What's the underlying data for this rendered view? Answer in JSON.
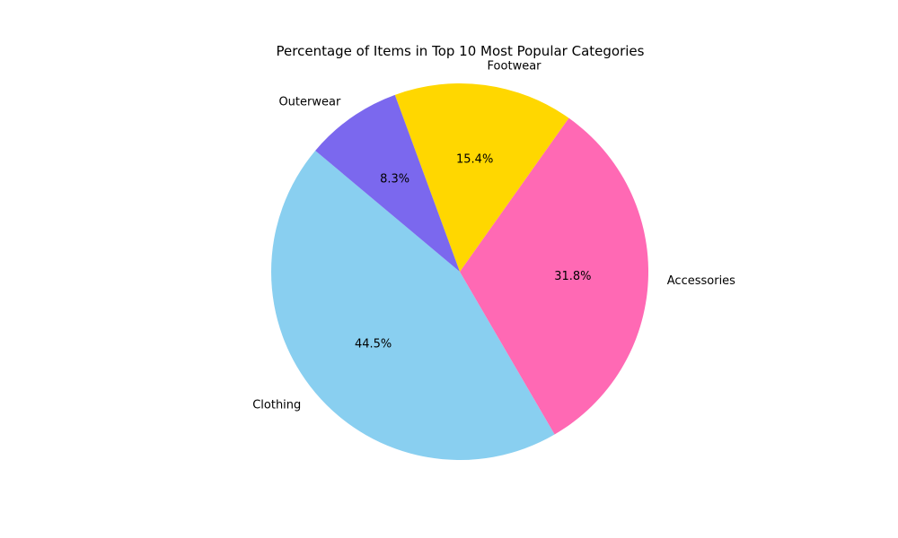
{
  "chart_data": {
    "type": "pie",
    "title": "Percentage of Items in Top 10 Most Popular Categories",
    "slices": [
      {
        "label": "Clothing",
        "value": 44.5,
        "pct_label": "44.5%",
        "color": "#89CFF0"
      },
      {
        "label": "Accessories",
        "value": 31.8,
        "pct_label": "31.8%",
        "color": "#FF69B4"
      },
      {
        "label": "Footwear",
        "value": 15.4,
        "pct_label": "15.4%",
        "color": "#FFD700"
      },
      {
        "label": "Outerwear",
        "value": 8.3,
        "pct_label": "8.3%",
        "color": "#7B68EE"
      }
    ],
    "legend": false
  }
}
